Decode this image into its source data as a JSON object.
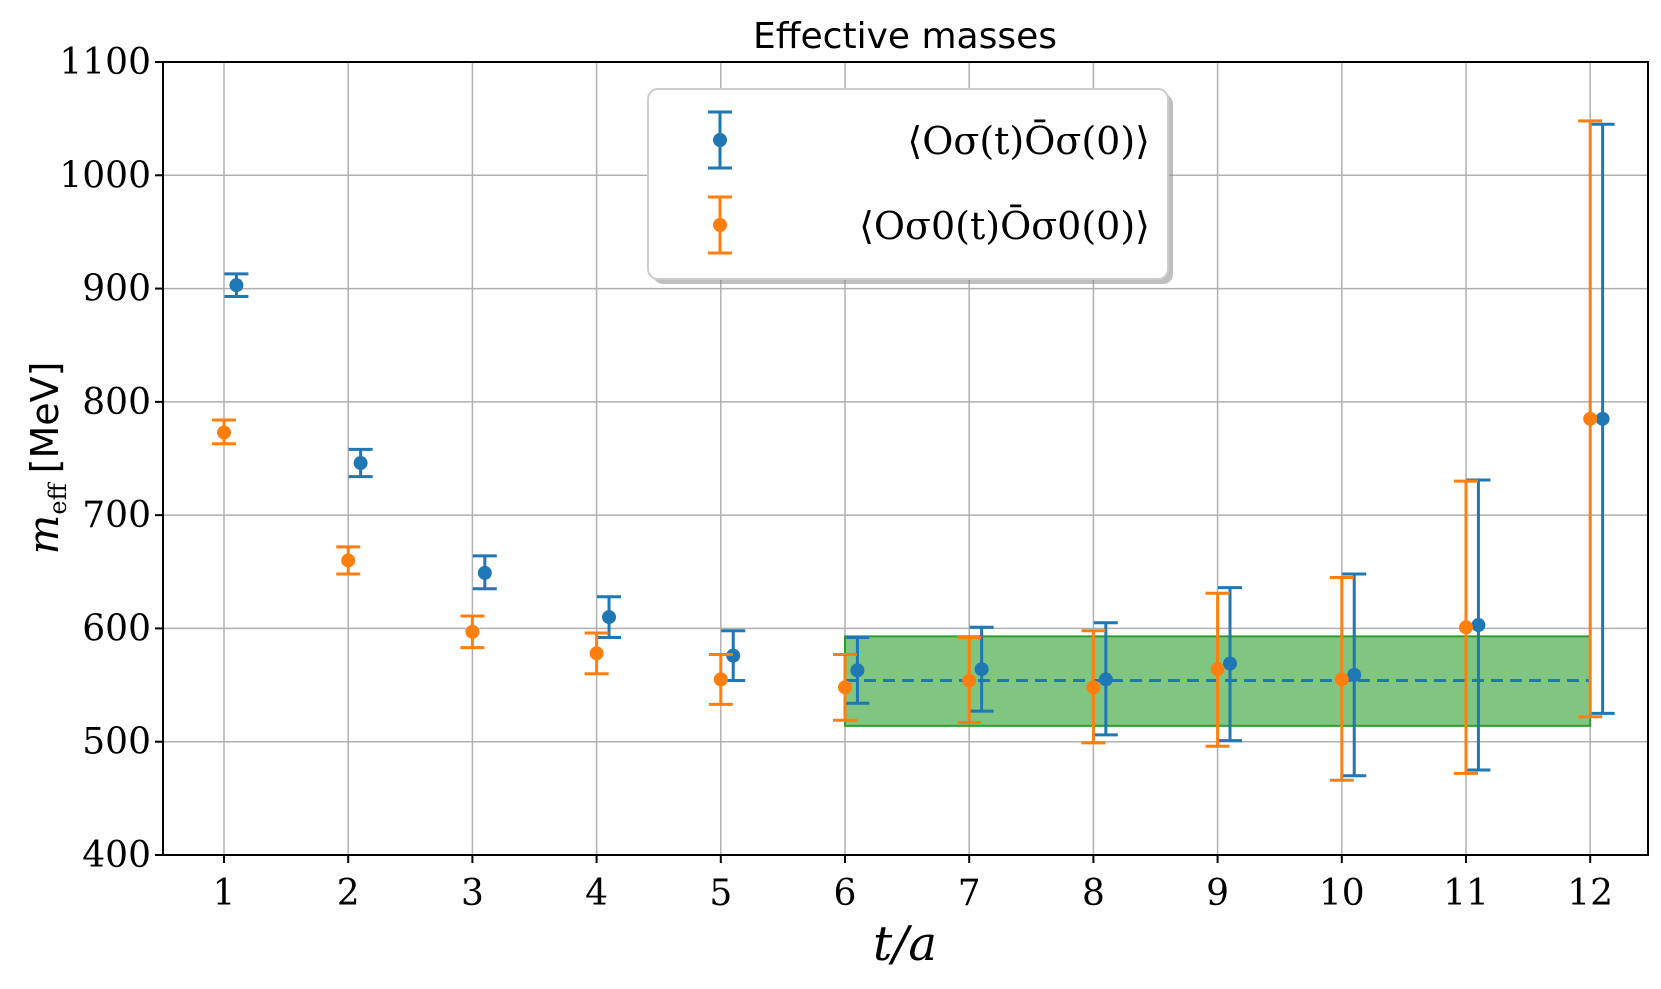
{
  "chart_data": {
    "type": "scatter",
    "title": "Effective masses",
    "xlabel": "t/a",
    "ylabel_math": "m",
    "ylabel_sub": "eff",
    "ylabel_unit": "[MeV]",
    "xlim": [
      0.5,
      12.5
    ],
    "ylim": [
      400,
      1100
    ],
    "xticks": [
      1,
      2,
      3,
      4,
      5,
      6,
      7,
      8,
      9,
      10,
      11,
      12
    ],
    "yticks": [
      400,
      500,
      600,
      700,
      800,
      900,
      1000,
      1100
    ],
    "grid": true,
    "legend_position": "top-center",
    "series": [
      {
        "name": "⟨O_σ(t)Ō_σ(0)⟩",
        "legend_label": "⟨Oσ(t)Ōσ(0)⟩",
        "color": "#1f77b4",
        "x": [
          1.1,
          2.1,
          3.1,
          4.1,
          5.1,
          6.1,
          7.1,
          8.1,
          9.1,
          10.1,
          11.1,
          12.1
        ],
        "y": [
          903,
          746,
          649,
          610,
          576,
          563,
          564,
          555,
          569,
          559,
          603,
          785
        ],
        "err_low": [
          893,
          734,
          635,
          592,
          554,
          534,
          527,
          506,
          501,
          470,
          475,
          525
        ],
        "err_high": [
          913,
          758,
          664,
          628,
          598,
          592,
          601,
          605,
          636,
          648,
          731,
          1045
        ]
      },
      {
        "name": "⟨O_σ0(t)Ō_σ0(0)⟩",
        "legend_label": "⟨Oσ0(t)Ōσ0(0)⟩",
        "color": "#ff7f0e",
        "x": [
          1,
          2,
          3,
          4,
          5,
          6,
          7,
          8,
          9,
          10,
          11,
          12
        ],
        "y": [
          773,
          660,
          597,
          578,
          555,
          548,
          554,
          548,
          564,
          555,
          601,
          785
        ],
        "err_low": [
          763,
          648,
          583,
          560,
          533,
          519,
          517,
          499,
          496,
          466,
          472,
          522
        ],
        "err_high": [
          784,
          672,
          611,
          596,
          577,
          577,
          592,
          598,
          631,
          645,
          730,
          1048
        ]
      }
    ],
    "fit_band": {
      "color": "#2ca02c",
      "line_color": "#1f77b4",
      "x_range": [
        6,
        12
      ],
      "center": 554,
      "low": 514,
      "high": 593
    }
  }
}
